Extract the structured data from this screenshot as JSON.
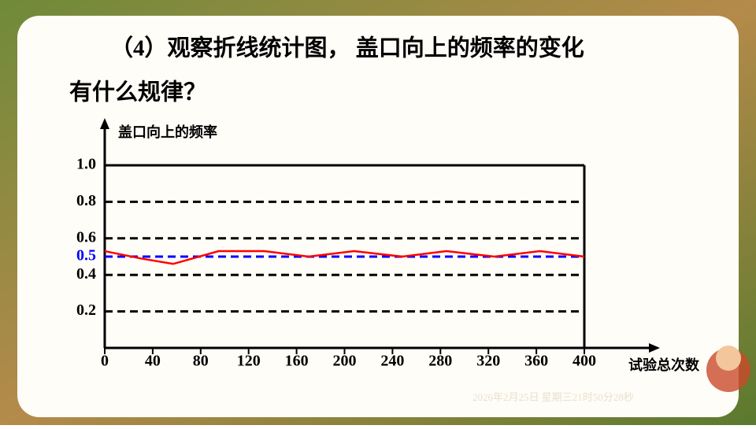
{
  "chart_data": {
    "type": "line",
    "title_lines": [
      "（4）观察折线统计图， 盖口向上的频率的变化",
      "有什么规律？"
    ],
    "y_label": "盖口向上的频率",
    "x_label": "试验总次数",
    "x": [
      0,
      30,
      57,
      95,
      133,
      170,
      208,
      248,
      285,
      325,
      363,
      400
    ],
    "values": [
      0.53,
      0.49,
      0.46,
      0.53,
      0.53,
      0.5,
      0.53,
      0.5,
      0.53,
      0.5,
      0.53,
      0.5
    ],
    "color": "#ff0000",
    "xlim": [
      0,
      400
    ],
    "xticks": [
      0,
      40,
      80,
      120,
      160,
      200,
      240,
      280,
      320,
      360,
      400
    ],
    "ylim": [
      0,
      1
    ],
    "yticks": [
      0.2,
      0.4,
      0.5,
      0.6,
      0.8,
      {
        "value": 1,
        "label": "1.0"
      }
    ],
    "grid": true,
    "highlight": {
      "value": 0.5,
      "color": "#0000ff"
    },
    "timestamp": "2026年2月25日 星期三21时50分28秒"
  }
}
